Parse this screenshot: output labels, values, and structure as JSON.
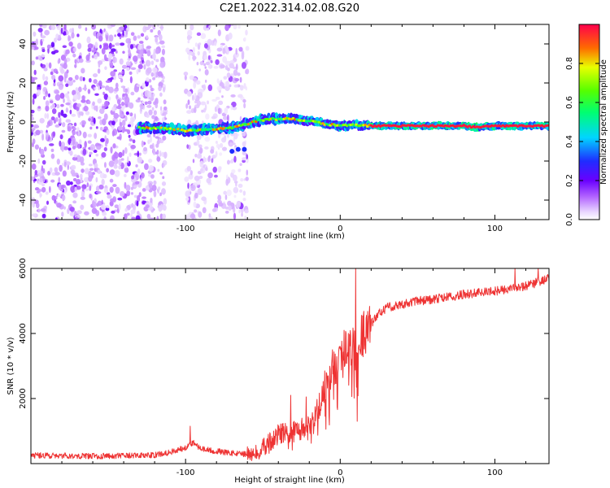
{
  "figure_title": "C2E1.2022.314.02.08.G20",
  "chart_data": [
    {
      "type": "heatmap",
      "title": "C2E1.2022.314.02.08.G20",
      "xlabel": "Height of straight line (km)",
      "ylabel": "Frequency (Hz)",
      "xlim": [
        -200,
        135
      ],
      "ylim": [
        -50,
        50
      ],
      "x_ticks": [
        -100,
        0,
        100
      ],
      "x_tick_labels": [
        "-100",
        "0",
        "100"
      ],
      "y_ticks": [
        -40,
        -20,
        0,
        20,
        40
      ],
      "y_tick_labels": [
        "-40",
        "-20",
        "0",
        "20",
        "40"
      ],
      "colorbar": {
        "label": "Normalized spectral amplitude",
        "range": [
          0,
          1
        ],
        "ticks": [
          0.0,
          0.2,
          0.4,
          0.6,
          0.8
        ],
        "tick_labels": [
          "0.0",
          "0.2",
          "0.4",
          "0.6",
          "0.8"
        ],
        "colormap": "rainbow (white-violet-blue-cyan-green-yellow-red)"
      },
      "signal_track": {
        "description": "Main spectral line (frequency vs height)",
        "x": [
          -130,
          -120,
          -110,
          -100,
          -90,
          -80,
          -70,
          -60,
          -55,
          -50,
          -45,
          -40,
          -35,
          -30,
          -25,
          -20,
          -15,
          -10,
          -5,
          0,
          10,
          20,
          30,
          50,
          70,
          80,
          85,
          90,
          100,
          120,
          135
        ],
        "y": [
          -3,
          -3,
          -3.5,
          -4.5,
          -4,
          -3.5,
          -3,
          -1,
          0.5,
          1,
          1.5,
          1.5,
          2,
          1.5,
          1,
          0.5,
          0,
          -1,
          -1.5,
          -2,
          -1.5,
          -2,
          -2,
          -2,
          -2,
          -2,
          -2.5,
          -2.5,
          -2,
          -2,
          -2
        ],
        "peak_amplitude": 0.95
      },
      "noise_region": {
        "x_range": [
          -200,
          -60
        ],
        "y_range": [
          -50,
          50
        ]
      }
    },
    {
      "type": "line",
      "xlabel": "Height of straight line (km)",
      "ylabel": "SNR (10 * v/v)",
      "xlim": [
        -200,
        135
      ],
      "ylim": [
        0,
        6000
      ],
      "x_ticks": [
        -100,
        0,
        100
      ],
      "x_tick_labels": [
        "-100",
        "0",
        "100"
      ],
      "y_ticks": [
        2000,
        4000,
        6000
      ],
      "y_tick_labels": [
        "2000",
        "4000",
        "6000"
      ],
      "color": "#ee3333",
      "envelope": {
        "x": [
          -200,
          -150,
          -120,
          -110,
          -100,
          -95,
          -90,
          -80,
          -70,
          -60,
          -55,
          -50,
          -45,
          -40,
          -30,
          -20,
          -15,
          -10,
          -5,
          0,
          5,
          10,
          15,
          20,
          25,
          30,
          40,
          50,
          60,
          80,
          100,
          120,
          135
        ],
        "y": [
          250,
          230,
          260,
          350,
          500,
          650,
          450,
          380,
          320,
          280,
          300,
          500,
          700,
          900,
          1000,
          1150,
          1600,
          2200,
          2800,
          3300,
          3800,
          3500,
          4000,
          4300,
          4600,
          4800,
          4900,
          5000,
          5050,
          5200,
          5300,
          5450,
          5700
        ]
      },
      "spikes": [
        {
          "x": -97,
          "y": 1150
        },
        {
          "x": -32,
          "y": 2100
        },
        {
          "x": -22,
          "y": 2050
        },
        {
          "x": -10,
          "y": 2850
        },
        {
          "x": -5,
          "y": 3500
        },
        {
          "x": 10,
          "y": 6000
        },
        {
          "x": 11,
          "y": 1300
        },
        {
          "x": 113,
          "y": 6000
        },
        {
          "x": 128,
          "y": 6000
        }
      ]
    }
  ]
}
